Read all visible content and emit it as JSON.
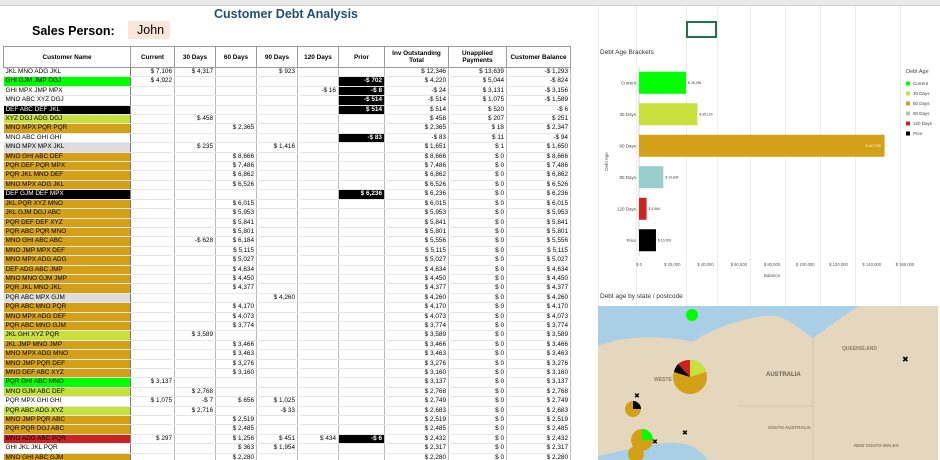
{
  "sheet": {
    "title": "Customer Debt Analysis",
    "sales_person_label": "Sales Person:",
    "sales_person_value": "John"
  },
  "table": {
    "headers": [
      "Customer Name",
      "Current",
      "30 Days",
      "60 Days",
      "90 Days",
      "120 Days",
      "Prior",
      "Inv Outstanding Total",
      "Unapplied Payments",
      "Customer Balance"
    ],
    "rows": [
      {
        "name": "JKL MNO ADG JKL",
        "color": "#ffffff",
        "cells": [
          "$ 7,106",
          "$ 4,317",
          "",
          "$ 923",
          "",
          "",
          "$ 12,346",
          "$ 13,639",
          "-$ 1,293"
        ],
        "black": []
      },
      {
        "name": "GHI GJM JMP DGJ",
        "color": "#00ff00",
        "cells": [
          "$ 4,922",
          "",
          "",
          "",
          "",
          "-$ 702",
          "$ 4,220",
          "$ 5,044",
          "-$ 824"
        ],
        "black": [
          5
        ]
      },
      {
        "name": "GHI MPX JMP MPX",
        "color": "#ffffff",
        "cells": [
          "",
          "",
          "",
          "",
          "-$ 16",
          "-$ 8",
          "-$ 24",
          "$ 3,131",
          "-$ 3,156"
        ],
        "black": [
          5
        ]
      },
      {
        "name": "MNO ABC XYZ DGJ",
        "color": "#ffffff",
        "cells": [
          "",
          "",
          "",
          "",
          "",
          "-$ 514",
          "-$ 514",
          "$ 1,075",
          "-$ 1,589"
        ],
        "black": [
          5
        ]
      },
      {
        "name": "DEF ABC DEF JKL",
        "color": "#000000",
        "cells": [
          "",
          "",
          "",
          "",
          "",
          "$ 514",
          "$ 514",
          "$ 520",
          "-$ 6"
        ],
        "black": [
          5
        ]
      },
      {
        "name": "XYZ DGJ ADG DGJ",
        "color": "#c8e03b",
        "cells": [
          "",
          "$ 458",
          "",
          "",
          "",
          "",
          "$ 458",
          "$ 207",
          "$ 251"
        ],
        "black": []
      },
      {
        "name": "MNO MPX PQR PQR",
        "color": "#d4a017",
        "cells": [
          "",
          "",
          "$ 2,365",
          "",
          "",
          "",
          "$ 2,365",
          "$ 18",
          "$ 2,347"
        ],
        "black": []
      },
      {
        "name": "MNO ABC GHI GHI",
        "color": "#ffffff",
        "cells": [
          "",
          "",
          "",
          "",
          "",
          "-$ 83",
          "-$ 83",
          "$ 11",
          "-$ 94"
        ],
        "black": [
          5
        ]
      },
      {
        "name": "MNO MPX MPX JKL",
        "color": "#dddddd",
        "cells": [
          "",
          "$ 235",
          "",
          "$ 1,416",
          "",
          "",
          "$ 1,651",
          "$ 1",
          "$ 1,650"
        ],
        "black": []
      },
      {
        "name": "MNO GHI ABC DEF",
        "color": "#d4a017",
        "cells": [
          "",
          "",
          "$ 8,666",
          "",
          "",
          "",
          "$ 8,666",
          "$ 0",
          "$ 8,666"
        ],
        "black": []
      },
      {
        "name": "PQR DEF PQR MPX",
        "color": "#d4a017",
        "cells": [
          "",
          "",
          "$ 7,486",
          "",
          "",
          "",
          "$ 7,486",
          "$ 0",
          "$ 7,486"
        ],
        "black": []
      },
      {
        "name": "PQR JKL MNO DEF",
        "color": "#d4a017",
        "cells": [
          "",
          "",
          "$ 6,862",
          "",
          "",
          "",
          "$ 6,862",
          "$ 0",
          "$ 6,862"
        ],
        "black": []
      },
      {
        "name": "MNO MPX ADG JKL",
        "color": "#d4a017",
        "cells": [
          "",
          "",
          "$ 6,526",
          "",
          "",
          "",
          "$ 6,526",
          "$ 0",
          "$ 6,526"
        ],
        "black": []
      },
      {
        "name": "DEF GJM DEF MPX",
        "color": "#000000",
        "cells": [
          "",
          "",
          "",
          "",
          "",
          "$ 6,236",
          "$ 6,236",
          "$ 0",
          "$ 6,236"
        ],
        "black": [
          5
        ]
      },
      {
        "name": "JKL PQR XYZ MNO",
        "color": "#d4a017",
        "cells": [
          "",
          "",
          "$ 6,015",
          "",
          "",
          "",
          "$ 6,015",
          "$ 0",
          "$ 6,015"
        ],
        "black": []
      },
      {
        "name": "JKL GJM DGJ ABC",
        "color": "#d4a017",
        "cells": [
          "",
          "",
          "$ 5,953",
          "",
          "",
          "",
          "$ 5,953",
          "$ 0",
          "$ 5,953"
        ],
        "black": []
      },
      {
        "name": "PQR DEF DEF XYZ",
        "color": "#d4a017",
        "cells": [
          "",
          "",
          "$ 5,841",
          "",
          "",
          "",
          "$ 5,841",
          "$ 0",
          "$ 5,841"
        ],
        "black": []
      },
      {
        "name": "PQR ABC PQR MNO",
        "color": "#d4a017",
        "cells": [
          "",
          "",
          "$ 5,801",
          "",
          "",
          "",
          "$ 5,801",
          "$ 0",
          "$ 5,801"
        ],
        "black": []
      },
      {
        "name": "MNO GHI ABC ABC",
        "color": "#d4a017",
        "cells": [
          "",
          "-$ 628",
          "$ 6,184",
          "",
          "",
          "",
          "$ 5,556",
          "$ 0",
          "$ 5,556"
        ],
        "black": []
      },
      {
        "name": "MNO JMP MPX DEF",
        "color": "#d4a017",
        "cells": [
          "",
          "",
          "$ 5,115",
          "",
          "",
          "",
          "$ 5,115",
          "$ 0",
          "$ 5,115"
        ],
        "black": []
      },
      {
        "name": "MNO MPX ADG ADG",
        "color": "#d4a017",
        "cells": [
          "",
          "",
          "$ 5,027",
          "",
          "",
          "",
          "$ 5,027",
          "$ 0",
          "$ 5,027"
        ],
        "black": []
      },
      {
        "name": "DEF ADG ABC JMP",
        "color": "#d4a017",
        "cells": [
          "",
          "",
          "$ 4,634",
          "",
          "",
          "",
          "$ 4,634",
          "$ 0",
          "$ 4,634"
        ],
        "black": []
      },
      {
        "name": "MNO MNO GJM JMP",
        "color": "#d4a017",
        "cells": [
          "",
          "",
          "$ 4,450",
          "",
          "",
          "",
          "$ 4,450",
          "$ 0",
          "$ 4,450"
        ],
        "black": []
      },
      {
        "name": "PQR JKL MNO JKL",
        "color": "#d4a017",
        "cells": [
          "",
          "",
          "$ 4,377",
          "",
          "",
          "",
          "$ 4,377",
          "$ 0",
          "$ 4,377"
        ],
        "black": []
      },
      {
        "name": "PQR ABC MPX GJM",
        "color": "#dddddd",
        "cells": [
          "",
          "",
          "",
          "$ 4,260",
          "",
          "",
          "$ 4,260",
          "$ 0",
          "$ 4,260"
        ],
        "black": []
      },
      {
        "name": "PQR ABC MNO PQR",
        "color": "#d4a017",
        "cells": [
          "",
          "",
          "$ 4,170",
          "",
          "",
          "",
          "$ 4,170",
          "$ 0",
          "$ 4,170"
        ],
        "black": []
      },
      {
        "name": "MNO MPX ADG DEF",
        "color": "#d4a017",
        "cells": [
          "",
          "",
          "$ 4,073",
          "",
          "",
          "",
          "$ 4,073",
          "$ 0",
          "$ 4,073"
        ],
        "black": []
      },
      {
        "name": "PQR ABC MNO GJM",
        "color": "#d4a017",
        "cells": [
          "",
          "",
          "$ 3,774",
          "",
          "",
          "",
          "$ 3,774",
          "$ 0",
          "$ 3,774"
        ],
        "black": []
      },
      {
        "name": "JKL GHI XYZ PQR",
        "color": "#c8e03b",
        "cells": [
          "",
          "$ 3,589",
          "",
          "",
          "",
          "",
          "$ 3,589",
          "$ 0",
          "$ 3,589"
        ],
        "black": []
      },
      {
        "name": "JKL JMP MNO JMP",
        "color": "#d4a017",
        "cells": [
          "",
          "",
          "$ 3,466",
          "",
          "",
          "",
          "$ 3,466",
          "$ 0",
          "$ 3,466"
        ],
        "black": []
      },
      {
        "name": "MNO MPX ADG MNO",
        "color": "#d4a017",
        "cells": [
          "",
          "",
          "$ 3,463",
          "",
          "",
          "",
          "$ 3,463",
          "$ 0",
          "$ 3,463"
        ],
        "black": []
      },
      {
        "name": "MNO JMP PQR DEF",
        "color": "#d4a017",
        "cells": [
          "",
          "",
          "$ 3,276",
          "",
          "",
          "",
          "$ 3,276",
          "$ 0",
          "$ 3,276"
        ],
        "black": []
      },
      {
        "name": "MNO DEF ABC XYZ",
        "color": "#d4a017",
        "cells": [
          "",
          "",
          "$ 3,160",
          "",
          "",
          "",
          "$ 3,160",
          "$ 0",
          "$ 3,160"
        ],
        "black": []
      },
      {
        "name": "PQR GHI ABC MNO",
        "color": "#00ff00",
        "cells": [
          "$ 3,137",
          "",
          "",
          "",
          "",
          "",
          "$ 3,137",
          "$ 0",
          "$ 3,137"
        ],
        "black": []
      },
      {
        "name": "MNO GJM ABC DEF",
        "color": "#c8e03b",
        "cells": [
          "",
          "$ 2,768",
          "",
          "",
          "",
          "",
          "$ 2,768",
          "$ 0",
          "$ 2,768"
        ],
        "black": []
      },
      {
        "name": "PQR MPX GHI GHI",
        "color": "#ffffff",
        "cells": [
          "$ 1,075",
          "-$ 7",
          "$ 656",
          "$ 1,025",
          "",
          "",
          "$ 2,749",
          "$ 0",
          "$ 2,749"
        ],
        "black": []
      },
      {
        "name": "PQR ABC ADG XYZ",
        "color": "#c8e03b",
        "cells": [
          "",
          "$ 2,716",
          "",
          "-$ 33",
          "",
          "",
          "$ 2,683",
          "$ 0",
          "$ 2,683"
        ],
        "black": []
      },
      {
        "name": "MNO JMP PQR ABC",
        "color": "#d4a017",
        "cells": [
          "",
          "",
          "$ 2,519",
          "",
          "",
          "",
          "$ 2,519",
          "$ 0",
          "$ 2,519"
        ],
        "black": []
      },
      {
        "name": "PQR PQR DGJ ABC",
        "color": "#d4a017",
        "cells": [
          "",
          "",
          "$ 2,485",
          "",
          "",
          "",
          "$ 2,485",
          "$ 0",
          "$ 2,485"
        ],
        "black": []
      },
      {
        "name": "MNO ADG ABC PQR",
        "color": "#cc2222",
        "cells": [
          "$ 297",
          "",
          "$ 1,256",
          "$ 451",
          "$ 434",
          "-$ 6",
          "$ 2,432",
          "$ 0",
          "$ 2,432"
        ],
        "black": [
          5
        ]
      },
      {
        "name": "GHI JKL JKL PQR",
        "color": "#ffffff",
        "cells": [
          "",
          "",
          "$ 363",
          "$ 1,954",
          "",
          "",
          "$ 2,317",
          "$ 0",
          "$ 2,317"
        ],
        "black": []
      },
      {
        "name": "MNO GHI ABC GJM",
        "color": "#d4a017",
        "cells": [
          "",
          "",
          "$ 2,280",
          "",
          "",
          "",
          "$ 2,280",
          "$ 0",
          "$ 2,280"
        ],
        "black": []
      }
    ]
  },
  "chart_data": {
    "type": "bar",
    "orientation": "horizontal",
    "title": "Debt Age Brackets",
    "xlabel": "Balance",
    "ylabel": "Debt Age",
    "categories": [
      "Current",
      "30 Days",
      "60 Days",
      "90 Days",
      "120 Days",
      "Prior"
    ],
    "values": [
      28296,
      35124,
      147709,
      14634,
      4564,
      10200
    ],
    "data_labels": [
      "$ 28,296",
      "$ 35,124",
      "$ 147,709",
      "$ 14,634",
      "$ 4,564",
      "$ 10,200"
    ],
    "colors": [
      "#00ff00",
      "#c8e03b",
      "#d4a017",
      "#99cccc",
      "#cc2222",
      "#000000"
    ],
    "xlim": [
      0,
      160000
    ],
    "xticks": [
      "$ 0",
      "$ 20,000",
      "$ 40,000",
      "$ 60,000",
      "$ 80,000",
      "$ 100,000",
      "$ 120,000",
      "$ 140,000",
      "$ 160,000"
    ],
    "legend_title": "Debt Age",
    "legend_position": "right",
    "grid": false
  },
  "map": {
    "title": "Debt age by state / postcode",
    "labels": [
      "QUEENSLAND",
      "AUSTRALIA",
      "WESTE",
      "SOUTH AUSTRALIA",
      "NEW SOUTH WALES"
    ]
  }
}
